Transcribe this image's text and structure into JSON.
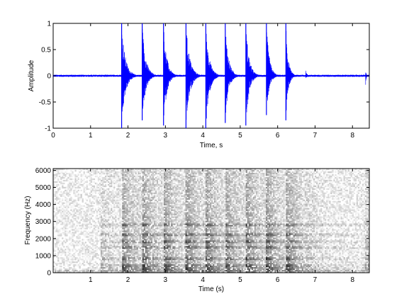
{
  "figure": {
    "background": "#ffffff"
  },
  "chart_data": [
    {
      "type": "line",
      "xlabel": "Time, s",
      "ylabel": "Amplitude",
      "xlim": [
        0,
        8.45
      ],
      "ylim": [
        -1,
        1
      ],
      "x_ticks": [
        "0",
        "1",
        "2",
        "3",
        "4",
        "5",
        "6",
        "7",
        "8"
      ],
      "y_ticks": [
        "1",
        "0.5",
        "0",
        "-0.5",
        "-1"
      ],
      "color": "#0000ff",
      "baseline_noise_amplitude": 0.02,
      "bursts": [
        {
          "t": 1.25,
          "pos_peak": 0.02,
          "neg_peak": -0.02,
          "decay": 0.5
        },
        {
          "t": 1.83,
          "pos_peak": 1.0,
          "neg_peak": -1.0,
          "decay": 0.32
        },
        {
          "t": 2.38,
          "pos_peak": 1.0,
          "neg_peak": -0.85,
          "decay": 0.3
        },
        {
          "t": 2.95,
          "pos_peak": 1.0,
          "neg_peak": -0.95,
          "decay": 0.28
        },
        {
          "t": 3.55,
          "pos_peak": 1.0,
          "neg_peak": -1.0,
          "decay": 0.32
        },
        {
          "t": 4.08,
          "pos_peak": 1.0,
          "neg_peak": -1.0,
          "decay": 0.3
        },
        {
          "t": 4.6,
          "pos_peak": 1.0,
          "neg_peak": -0.9,
          "decay": 0.28
        },
        {
          "t": 5.15,
          "pos_peak": 1.0,
          "neg_peak": -0.95,
          "decay": 0.28
        },
        {
          "t": 5.7,
          "pos_peak": 1.0,
          "neg_peak": -0.75,
          "decay": 0.25
        },
        {
          "t": 6.22,
          "pos_peak": 1.0,
          "neg_peak": -0.85,
          "decay": 0.2
        },
        {
          "t": 6.75,
          "pos_peak": 0.1,
          "neg_peak": -0.05,
          "decay": 0.12
        },
        {
          "t": 8.35,
          "pos_peak": 0.15,
          "neg_peak": -0.2,
          "decay": 0.05
        }
      ]
    },
    {
      "type": "heatmap",
      "xlabel": "Time (s)",
      "ylabel": "Frequency (Hz)",
      "xlim": [
        0,
        8.45
      ],
      "ylim": [
        0,
        6100
      ],
      "x_ticks": [
        "1",
        "2",
        "3",
        "4",
        "5",
        "6",
        "7",
        "8"
      ],
      "y_ticks": [
        "6000",
        "5000",
        "4000",
        "3000",
        "2000",
        "1000",
        "0"
      ],
      "colormap": "grayscale (dark = high energy)",
      "onsets": [
        1.25,
        1.83,
        2.38,
        2.95,
        3.55,
        4.08,
        4.6,
        5.15,
        5.7,
        6.22,
        6.75,
        8.35
      ],
      "harmonic_bands_hz": [
        250,
        450,
        850,
        1500,
        1800,
        2200,
        2800
      ]
    }
  ]
}
